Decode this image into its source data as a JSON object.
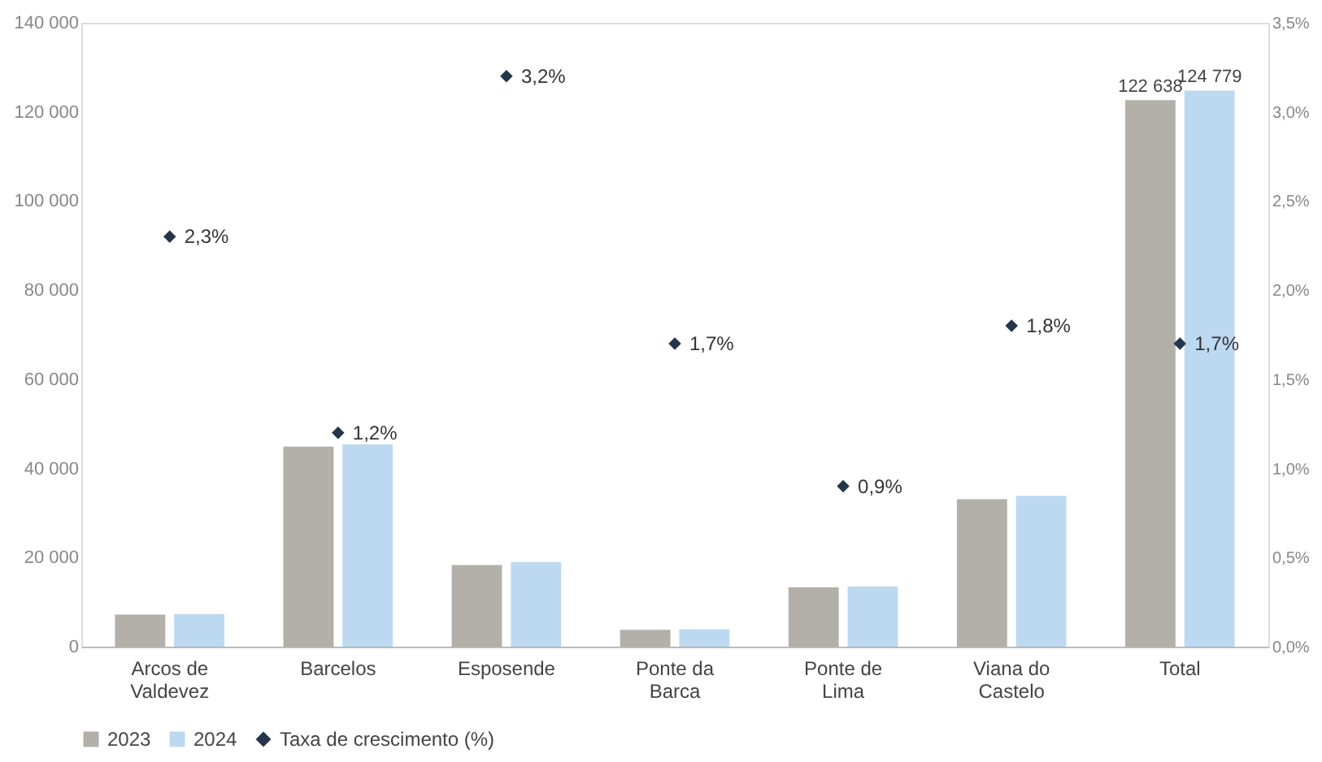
{
  "chart_data": {
    "type": "bar",
    "categories": [
      "Arcos de Valdevez",
      "Barcelos",
      "Esposende",
      "Ponte da Barca",
      "Ponte de Lima",
      "Viana do Castelo",
      "Total"
    ],
    "series": [
      {
        "name": "2023",
        "color": "#b3afa9",
        "values": [
          7200,
          44900,
          18300,
          3800,
          13300,
          33100,
          122638
        ],
        "value_labels": [
          null,
          null,
          null,
          null,
          null,
          null,
          "122 638"
        ]
      },
      {
        "name": "2024",
        "color": "#bdd9f1",
        "values": [
          7300,
          45400,
          19000,
          3900,
          13500,
          33800,
          124779
        ],
        "value_labels": [
          null,
          null,
          null,
          null,
          null,
          null,
          "124 779"
        ]
      },
      {
        "name": "Taxa de crescimento (%)",
        "type": "scatter",
        "axis": "y2",
        "color": "#26364a",
        "marker": "diamond",
        "values": [
          2.3,
          1.2,
          3.2,
          1.7,
          0.9,
          1.8,
          1.7
        ],
        "value_labels": [
          "2,3%",
          "1,2%",
          "3,2%",
          "1,7%",
          "0,9%",
          "1,8%",
          "1,7%"
        ]
      }
    ],
    "ylim": [
      0,
      140000
    ],
    "yticks": [
      {
        "value": 0,
        "label": "0"
      },
      {
        "value": 20000,
        "label": "20 000"
      },
      {
        "value": 40000,
        "label": "40 000"
      },
      {
        "value": 60000,
        "label": "60 000"
      },
      {
        "value": 80000,
        "label": "80 000"
      },
      {
        "value": 100000,
        "label": "100 000"
      },
      {
        "value": 120000,
        "label": "120 000"
      },
      {
        "value": 140000,
        "label": "140 000"
      }
    ],
    "y2lim": [
      0,
      3.5
    ],
    "y2ticks": [
      {
        "value": 0,
        "label": "0,0%"
      },
      {
        "value": 0.5,
        "label": "0,5%"
      },
      {
        "value": 1,
        "label": "1,0%"
      },
      {
        "value": 1.5,
        "label": "1,5%"
      },
      {
        "value": 2,
        "label": "2,0%"
      },
      {
        "value": 2.5,
        "label": "2,5%"
      },
      {
        "value": 3,
        "label": "3,0%"
      },
      {
        "value": 3.5,
        "label": "3,5%"
      }
    ],
    "legend": "bottom left",
    "grid": false
  }
}
